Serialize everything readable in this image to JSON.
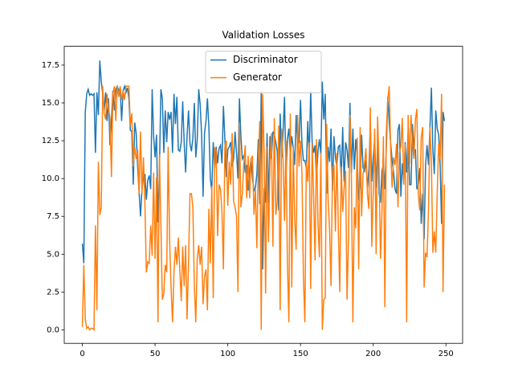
{
  "chart_data": {
    "type": "line",
    "title": "Validation Losses",
    "x": [
      0,
      1,
      2,
      3,
      4,
      5,
      6,
      7,
      8,
      9,
      10,
      11,
      12,
      13,
      14,
      15,
      16,
      17,
      18,
      19,
      20,
      21,
      22,
      23,
      24,
      25,
      26,
      27,
      28,
      29,
      30,
      31,
      32,
      33,
      34,
      35,
      36,
      37,
      38,
      39,
      40,
      41,
      42,
      43,
      44,
      45,
      46,
      47,
      48,
      49,
      50,
      51,
      52,
      53,
      54,
      55,
      56,
      57,
      58,
      59,
      60,
      61,
      62,
      63,
      64,
      65,
      66,
      67,
      68,
      69,
      70,
      71,
      72,
      73,
      74,
      75,
      76,
      77,
      78,
      79,
      80,
      81,
      82,
      83,
      84,
      85,
      86,
      87,
      88,
      89,
      90,
      91,
      92,
      93,
      94,
      95,
      96,
      97,
      98,
      99,
      100,
      101,
      102,
      103,
      104,
      105,
      106,
      107,
      108,
      109,
      110,
      111,
      112,
      113,
      114,
      115,
      116,
      117,
      118,
      119,
      120,
      121,
      122,
      123,
      124,
      125,
      126,
      127,
      128,
      129,
      130,
      131,
      132,
      133,
      134,
      135,
      136,
      137,
      138,
      139,
      140,
      141,
      142,
      143,
      144,
      145,
      146,
      147,
      148,
      149,
      150,
      151,
      152,
      153,
      154,
      155,
      156,
      157,
      158,
      159,
      160,
      161,
      162,
      163,
      164,
      165,
      166,
      167,
      168,
      169,
      170,
      171,
      172,
      173,
      174,
      175,
      176,
      177,
      178,
      179,
      180,
      181,
      182,
      183,
      184,
      185,
      186,
      187,
      188,
      189,
      190,
      191,
      192,
      193,
      194,
      195,
      196,
      197,
      198,
      199,
      200,
      201,
      202,
      203,
      204,
      205,
      206,
      207,
      208,
      209,
      210,
      211,
      212,
      213,
      214,
      215,
      216,
      217,
      218,
      219,
      220,
      221,
      222,
      223,
      224,
      225,
      226,
      227,
      228,
      229,
      230,
      231,
      232,
      233,
      234,
      235,
      236,
      237,
      238,
      239,
      240,
      241,
      242,
      243,
      244,
      245,
      246,
      247,
      248,
      249
    ],
    "series": [
      {
        "name": "Discriminator",
        "color": "#1f77b4",
        "values": [
          5.7,
          4.4,
          14.4,
          15.6,
          15.9,
          15.5,
          15.6,
          15.5,
          15.6,
          11.7,
          15.7,
          14.2,
          17.8,
          16.4,
          15.6,
          14.5,
          15.7,
          13.8,
          15.3,
          12.2,
          13.8,
          15.8,
          14.5,
          15.9,
          16.1,
          15.8,
          16.0,
          13.8,
          15.8,
          16.1,
          15.7,
          16.0,
          15.3,
          13.2,
          13.1,
          9.6,
          13.7,
          13.0,
          10.8,
          9.1,
          7.5,
          9.3,
          10.1,
          10.3,
          8.6,
          9.9,
          10.2,
          9.3,
          15.9,
          12.8,
          11.4,
          12.9,
          7.1,
          10.6,
          15.9,
          15.3,
          11.7,
          14.5,
          12.4,
          14.4,
          13.9,
          14.4,
          11.7,
          15.6,
          13.6,
          15.4,
          11.9,
          11.8,
          12.4,
          15.1,
          12.4,
          10.4,
          12.8,
          14.5,
          12.3,
          11.8,
          12.7,
          15.0,
          11.4,
          12.6,
          15.9,
          14.9,
          12.9,
          8.8,
          13.0,
          13.8,
          15.3,
          13.4,
          10.0,
          9.2,
          12.4,
          10.7,
          12.1,
          11.0,
          12.0,
          12.2,
          11.0,
          14.8,
          12.6,
          10.1,
          11.9,
          12.1,
          12.4,
          10.8,
          11.3,
          13.1,
          11.7,
          10.0,
          15.3,
          12.8,
          11.3,
          11.5,
          10.4,
          10.9,
          9.2,
          10.5,
          11.3,
          10.0,
          9.2,
          9.4,
          10.3,
          12.6,
          8.3,
          15.8,
          4.0,
          9.4,
          8.4,
          13.0,
          8.4,
          12.8,
          11.3,
          13.1,
          12.9,
          12.4,
          11.8,
          7.9,
          14.3,
          11.4,
          13.1,
          15.4,
          10.2,
          12.6,
          13.3,
          11.6,
          12.8,
          12.0,
          10.9,
          14.2,
          12.2,
          12.4,
          15.2,
          12.3,
          11.2,
          11.2,
          10.7,
          13.8,
          11.4,
          15.8,
          12.4,
          11.7,
          12.2,
          9.9,
          11.8,
          12.6,
          11.6,
          16.4,
          13.9,
          15.6,
          9.0,
          12.1,
          11.1,
          13.3,
          9.2,
          12.8,
          11.4,
          10.8,
          12.1,
          12.2,
          10.0,
          13.4,
          9.8,
          12.4,
          11.9,
          10.7,
          15.0,
          10.4,
          13.3,
          10.6,
          12.6,
          11.4,
          8.6,
          9.6,
          12.9,
          10.7,
          10.5,
          11.2,
          9.4,
          10.6,
          13.5,
          9.8,
          11.4,
          12.6,
          9.4,
          12.4,
          9.0,
          8.4,
          10.5,
          11.0,
          9.3,
          12.0,
          15.4,
          13.7,
          12.3,
          11.2,
          10.4,
          9.3,
          9.0,
          13.2,
          13.6,
          8.8,
          11.0,
          9.8,
          12.4,
          10.4,
          13.1,
          9.6,
          9.6,
          13.6,
          11.9,
          11.9,
          9.3,
          9.6,
          10.7,
          7.0,
          9.0,
          6.0,
          10.9,
          12.2,
          10.9,
          13.4,
          16.0,
          11.9,
          10.3,
          14.5,
          13.3,
          12.9,
          10.9,
          7.0,
          14.4,
          13.8
        ]
      },
      {
        "name": "Generator",
        "color": "#ff7f0e",
        "values": [
          0.2,
          4.3,
          0.7,
          0.1,
          0.2,
          0.0,
          0.1,
          0.1,
          0.0,
          6.9,
          1.3,
          11.1,
          7.6,
          8.1,
          16.1,
          14.3,
          13.9,
          15.6,
          14.6,
          14.0,
          10.1,
          15.6,
          16.1,
          13.8,
          16.1,
          15.4,
          16.1,
          15.2,
          15.8,
          15.2,
          16.1,
          16.1,
          16.1,
          13.5,
          14.3,
          10.8,
          12.1,
          11.3,
          11.9,
          9.0,
          13.1,
          9.0,
          11.4,
          8.4,
          3.8,
          4.5,
          4.4,
          6.9,
          4.9,
          10.4,
          4.7,
          10.1,
          0.5,
          11.6,
          7.0,
          2.0,
          2.4,
          4.3,
          3.8,
          12.1,
          5.9,
          2.8,
          0.5,
          3.8,
          5.5,
          4.3,
          6.1,
          4.0,
          1.9,
          5.5,
          2.9,
          5.6,
          0.7,
          4.4,
          9.0,
          9.0,
          8.1,
          3.0,
          0.5,
          4.7,
          5.6,
          4.3,
          5.5,
          1.7,
          3.5,
          4.0,
          1.3,
          8.0,
          4.4,
          9.5,
          2.1,
          12.0,
          11.9,
          6.2,
          9.6,
          9.3,
          7.8,
          4.0,
          12.1,
          12.5,
          8.2,
          11.1,
          9.6,
          13.0,
          8.5,
          8.1,
          7.5,
          2.5,
          13.7,
          8.1,
          9.0,
          11.0,
          12.2,
          8.7,
          11.5,
          8.7,
          11.3,
          11.5,
          7.6,
          9.3,
          5.4,
          11.3,
          13.8,
          0.0,
          15.6,
          11.7,
          2.4,
          12.1,
          5.8,
          11.0,
          13.0,
          5.5,
          14.0,
          7.6,
          8.5,
          13.5,
          1.3,
          13.3,
          11.2,
          7.2,
          12.5,
          4.4,
          0.5,
          14.3,
          2.8,
          12.1,
          7.3,
          5.3,
          14.2,
          10.8,
          12.5,
          10.3,
          3.5,
          0.5,
          11.1,
          9.8,
          12.4,
          2.7,
          12.3,
          8.9,
          4.6,
          12.6,
          7.1,
          4.8,
          11.7,
          0.0,
          2.0,
          2.1,
          13.6,
          8.6,
          6.6,
          2.9,
          10.7,
          10.9,
          6.5,
          11.7,
          6.7,
          2.5,
          10.8,
          7.8,
          9.4,
          10.5,
          2.0,
          6.0,
          14.2,
          10.1,
          0.5,
          8.1,
          6.7,
          12.7,
          4.0,
          13.4,
          7.5,
          10.3,
          11.0,
          12.0,
          9.0,
          8.0,
          14.7,
          5.5,
          9.1,
          13.3,
          5.0,
          14.1,
          10.9,
          4.7,
          7.8,
          12.8,
          1.5,
          13.1,
          15.2,
          16.1,
          11.9,
          9.4,
          11.4,
          10.9,
          12.3,
          8.1,
          11.7,
          12.1,
          14.0,
          9.6,
          12.3,
          0.5,
          14.2,
          11.0,
          14.2,
          12.3,
          11.3,
          13.9,
          14.6,
          9.0,
          7.9,
          12.7,
          13.4,
          2.8,
          5.1,
          4.8,
          7.9,
          13.4,
          11.0,
          5.1,
          6.5,
          5.1,
          9.0,
          12.3,
          11.3,
          15.6,
          2.5,
          9.6
        ]
      }
    ],
    "xlim": [
      -12.45,
      261.45
    ],
    "xticks": [
      0,
      50,
      100,
      150,
      200,
      250
    ],
    "ylim": [
      -0.89,
      18.74
    ],
    "yticks": [
      {
        "value": 0,
        "label": "0.0"
      },
      2.5,
      {
        "value": 5,
        "label": "5.0"
      },
      7.5,
      {
        "value": 10,
        "label": "10.0"
      },
      12.5,
      {
        "value": 15,
        "label": "15.0"
      },
      17.5
    ],
    "legend": "upper center"
  }
}
